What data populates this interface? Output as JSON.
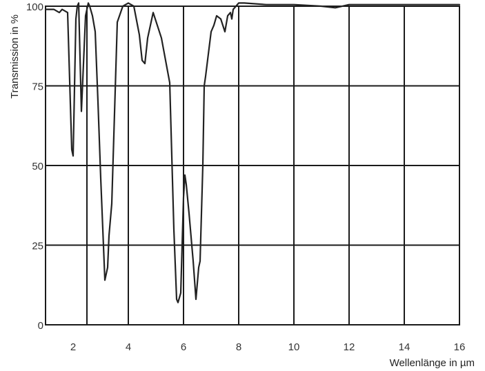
{
  "chart_data": {
    "type": "line",
    "title": "",
    "xlabel": "Wellenlänge in µm",
    "ylabel": "Transmission in %",
    "xlim": [
      1.0,
      16.0
    ],
    "ylim": [
      0,
      100
    ],
    "x_ticks": [
      2,
      4,
      6,
      8,
      10,
      12,
      14,
      16
    ],
    "y_ticks": [
      0,
      25,
      50,
      75,
      100
    ],
    "grid": true,
    "x_grid_lines": [
      2.5,
      4,
      6,
      8,
      10,
      12,
      14
    ],
    "y_grid_lines": [
      0,
      25,
      50,
      75,
      100
    ],
    "colors": {
      "line": "#222222",
      "grid": "#1a1a1a",
      "background": "#ffffff"
    },
    "series": [
      {
        "x": [
          1.0,
          1.3,
          1.5,
          1.6,
          1.8,
          1.95,
          2.0,
          2.1,
          2.15,
          2.2,
          2.3,
          2.45,
          2.55,
          2.6,
          2.7,
          2.8,
          2.9,
          3.0,
          3.15,
          3.25,
          3.3,
          3.4,
          3.6,
          3.8,
          4.0,
          4.2,
          4.4,
          4.5,
          4.6,
          4.7,
          4.9,
          5.2,
          5.5,
          5.65,
          5.75,
          5.8,
          5.9,
          6.0,
          6.05,
          6.1,
          6.2,
          6.35,
          6.45,
          6.55,
          6.6,
          6.7,
          6.75,
          6.8,
          6.9,
          7.0,
          7.1,
          7.2,
          7.35,
          7.5,
          7.6,
          7.7,
          7.75,
          7.8,
          7.9,
          8.0,
          8.2,
          9.0,
          10.0,
          11.0,
          11.5,
          12.0,
          13.0,
          14.0,
          15.0,
          16.0
        ],
        "y": [
          99,
          99,
          98,
          99,
          98,
          55,
          53,
          96,
          100,
          101,
          67,
          97,
          101,
          100,
          97,
          92,
          70,
          46,
          14,
          18,
          28,
          38,
          95,
          100,
          101,
          100,
          91,
          83,
          82,
          90,
          98,
          90,
          76,
          30,
          8,
          7,
          10,
          40,
          47,
          44,
          35,
          20,
          8,
          18,
          20,
          50,
          75,
          78,
          85,
          92,
          94,
          97,
          96,
          92,
          97,
          98,
          96,
          99,
          100,
          101,
          101,
          100.5,
          100.5,
          100,
          99.5,
          100.5,
          100.5,
          100.5,
          100.5,
          100.5
        ]
      }
    ]
  }
}
